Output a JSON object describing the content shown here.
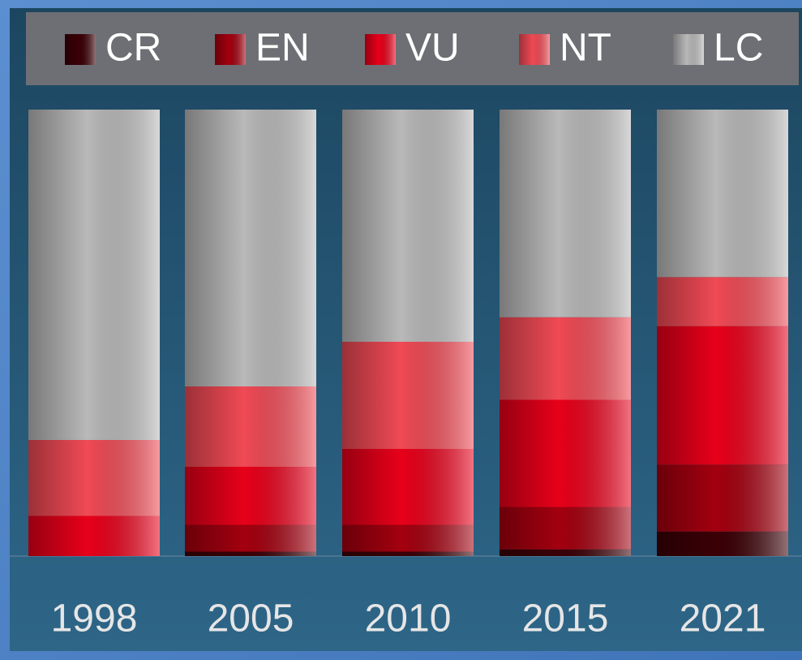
{
  "chart_data": {
    "type": "stacked_bar",
    "categories": [
      "1998",
      "2005",
      "2010",
      "2015",
      "2021"
    ],
    "ylim": [
      0,
      100
    ],
    "series": [
      {
        "name": "CR",
        "color": "#3a0006",
        "values": [
          0,
          1,
          1,
          1.5,
          5.5
        ]
      },
      {
        "name": "EN",
        "color": "#a3000f",
        "values": [
          0,
          6,
          6,
          9.5,
          15
        ]
      },
      {
        "name": "VU",
        "color": "#e8001a",
        "values": [
          9,
          13,
          17,
          24,
          31
        ]
      },
      {
        "name": "NT",
        "color": "#f04a55",
        "values": [
          17,
          18,
          24,
          18.5,
          11
        ]
      },
      {
        "name": "LC",
        "color": "#b9b9b9",
        "values": [
          74,
          62,
          52,
          46.5,
          37.5
        ]
      }
    ]
  }
}
